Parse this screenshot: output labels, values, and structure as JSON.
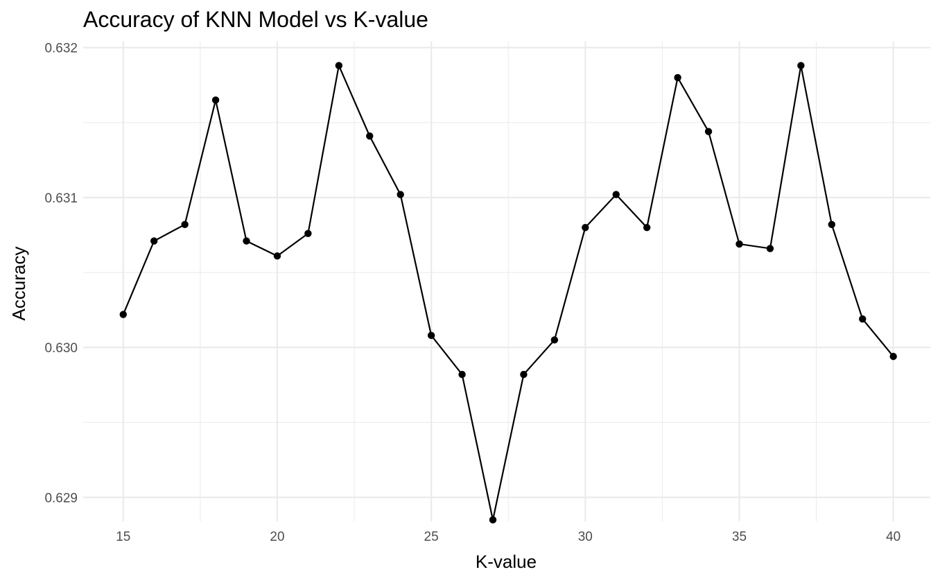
{
  "chart_data": {
    "type": "line",
    "title": "Accuracy of KNN Model vs K-value",
    "xlabel": "K-value",
    "ylabel": "Accuracy",
    "xlim": [
      13.7,
      41.2
    ],
    "ylim": [
      0.62884,
      0.63204
    ],
    "x_ticks": [
      15,
      20,
      25,
      30,
      35,
      40
    ],
    "x_tick_labels": [
      "15",
      "20",
      "25",
      "30",
      "35",
      "40"
    ],
    "x_minor_ticks": [
      17.5,
      22.5,
      27.5,
      32.5,
      37.5
    ],
    "y_ticks": [
      0.629,
      0.63,
      0.631,
      0.632
    ],
    "y_tick_labels": [
      "0.629",
      "0.630",
      "0.631",
      "0.632"
    ],
    "y_minor_ticks": [
      0.6295,
      0.6305,
      0.6315
    ],
    "grid": true,
    "series_color": "#000000",
    "x": [
      15,
      16,
      17,
      18,
      19,
      20,
      21,
      22,
      23,
      24,
      25,
      26,
      27,
      28,
      29,
      30,
      31,
      32,
      33,
      34,
      35,
      36,
      37,
      38,
      39,
      40
    ],
    "y": [
      0.63022,
      0.63071,
      0.63082,
      0.63165,
      0.63071,
      0.63061,
      0.63076,
      0.63188,
      0.63141,
      0.63102,
      0.63008,
      0.62982,
      0.62885,
      0.62982,
      0.63005,
      0.6308,
      0.63102,
      0.6308,
      0.6318,
      0.63144,
      0.63069,
      0.63066,
      0.63188,
      0.63082,
      0.63019,
      0.62994
    ]
  }
}
